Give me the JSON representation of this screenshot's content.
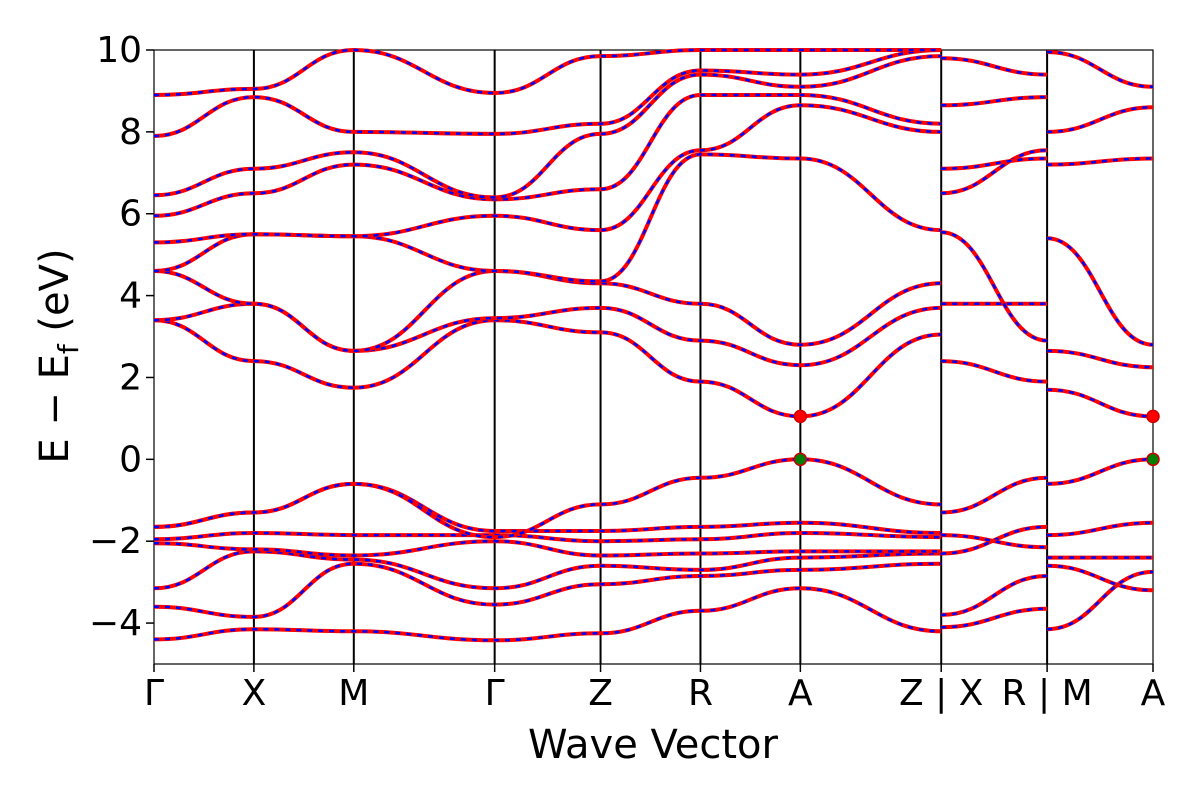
{
  "chart_data": {
    "type": "line",
    "xlabel": "Wave Vector",
    "ylabel_main": "E − E",
    "ylabel_sub": "f",
    "ylabel_unit": " (eV)",
    "ylim": [
      -5,
      10
    ],
    "yticks": [
      -4,
      -2,
      0,
      2,
      4,
      6,
      8,
      10
    ],
    "ytick_labels": [
      "−4",
      "−2",
      "0",
      "2",
      "4",
      "6",
      "8",
      "10"
    ],
    "xlim": [
      0,
      10
    ],
    "kpath_ticks": [
      {
        "x": 0.0,
        "label": "Γ"
      },
      {
        "x": 1.0,
        "label": "X"
      },
      {
        "x": 2.0,
        "label": "M"
      },
      {
        "x": 3.41,
        "label": "Γ"
      },
      {
        "x": 4.47,
        "label": "Z"
      },
      {
        "x": 5.47,
        "label": "R"
      },
      {
        "x": 6.47,
        "label": "A"
      },
      {
        "x": 7.88,
        "label": "Z | X"
      },
      {
        "x": 8.94,
        "label": "R | M"
      },
      {
        "x": 10.0,
        "label": "A"
      }
    ],
    "label_text": {
      "gamma": "Γ",
      "x": "X",
      "m": "M",
      "z": "Z",
      "r": "R",
      "a": "A",
      "sep": "|"
    },
    "line_colors": {
      "primary": "#ff0000",
      "overlay": "#0000ff",
      "grid": "#000000"
    },
    "band_edges": {
      "cbm": {
        "x": 6.47,
        "y": 1.05,
        "color": "#ff0000"
      },
      "vbm": {
        "x": 6.47,
        "y": 0.0,
        "color": "#008000"
      },
      "cbm2": {
        "x": 10.0,
        "y": 1.05,
        "color": "#ff0000"
      },
      "vbm2": {
        "x": 10.0,
        "y": 0.0,
        "color": "#008000"
      }
    },
    "series": [
      {
        "x": [
          0,
          1,
          2,
          3.41,
          4.47,
          5.47,
          6.47,
          7.88
        ],
        "y": [
          -4.4,
          -4.15,
          -4.2,
          -4.42,
          -4.25,
          -3.7,
          -3.15,
          -4.2
        ]
      },
      {
        "x": [
          0,
          1,
          2,
          3.41,
          4.47,
          5.47,
          6.47,
          7.88
        ],
        "y": [
          -3.6,
          -3.85,
          -2.55,
          -3.55,
          -3.05,
          -2.85,
          -2.7,
          -2.55
        ]
      },
      {
        "x": [
          0,
          1,
          2,
          3.41,
          4.47,
          5.47,
          6.47,
          7.88
        ],
        "y": [
          -3.15,
          -2.25,
          -2.45,
          -3.15,
          -2.6,
          -2.7,
          -2.4,
          -2.3
        ]
      },
      {
        "x": [
          0,
          1,
          2,
          3.41,
          4.47,
          5.47,
          6.47,
          7.88
        ],
        "y": [
          -2.05,
          -2.2,
          -2.35,
          -2.0,
          -2.35,
          -2.3,
          -2.25,
          -2.25
        ]
      },
      {
        "x": [
          0,
          1,
          2,
          3.41,
          4.47,
          5.47,
          6.47,
          7.88
        ],
        "y": [
          -1.95,
          -1.8,
          -1.85,
          -1.85,
          -2.0,
          -1.95,
          -1.8,
          -1.9
        ]
      },
      {
        "x": [
          0,
          1,
          2,
          3.41,
          4.47,
          5.47,
          6.47,
          7.88
        ],
        "y": [
          -1.65,
          -1.3,
          -0.6,
          -1.75,
          -1.75,
          -1.65,
          -1.55,
          -1.8
        ]
      },
      {
        "x": [
          0,
          1,
          2,
          3.41,
          4.47,
          5.47,
          6.47,
          7.88
        ],
        "y": [
          -1.65,
          -1.3,
          -0.6,
          -1.9,
          -1.1,
          -0.45,
          0.0,
          -1.1
        ]
      },
      {
        "x": [
          0,
          1,
          2,
          3.41,
          4.47,
          5.47,
          6.47,
          7.88
        ],
        "y": [
          3.4,
          2.4,
          1.75,
          3.4,
          3.1,
          1.9,
          1.05,
          3.05
        ]
      },
      {
        "x": [
          0,
          1,
          2,
          3.41,
          4.47,
          5.47,
          6.47,
          7.88
        ],
        "y": [
          3.4,
          3.8,
          2.65,
          3.45,
          3.7,
          2.9,
          2.3,
          3.7
        ]
      },
      {
        "x": [
          0,
          1,
          2,
          3.41,
          4.47,
          5.47,
          6.47,
          7.88
        ],
        "y": [
          4.6,
          3.8,
          2.65,
          4.6,
          4.3,
          3.8,
          2.8,
          4.3
        ]
      },
      {
        "x": [
          0,
          1,
          2,
          3.41,
          4.47,
          5.47,
          6.47,
          7.88
        ],
        "y": [
          4.6,
          5.5,
          5.45,
          4.6,
          4.35,
          7.45,
          7.35,
          5.6
        ]
      },
      {
        "x": [
          0,
          1,
          2,
          3.41,
          4.47,
          5.47,
          6.47,
          7.88
        ],
        "y": [
          5.3,
          5.5,
          5.45,
          5.95,
          5.6,
          7.55,
          8.65,
          8.0
        ]
      },
      {
        "x": [
          0,
          1,
          2,
          3.41,
          4.47,
          5.47,
          6.47,
          7.88
        ],
        "y": [
          5.95,
          6.5,
          7.2,
          6.35,
          6.6,
          8.9,
          8.9,
          8.2
        ]
      },
      {
        "x": [
          0,
          1,
          2,
          3.41,
          4.47,
          5.47,
          6.47,
          7.88
        ],
        "y": [
          6.45,
          7.1,
          7.5,
          6.4,
          7.95,
          9.4,
          9.1,
          9.85
        ]
      },
      {
        "x": [
          0,
          1,
          2,
          3.41,
          4.47,
          5.47,
          6.47,
          7.88
        ],
        "y": [
          7.9,
          8.85,
          8.0,
          7.95,
          8.2,
          9.5,
          9.4,
          10.0
        ]
      },
      {
        "x": [
          0,
          1,
          2,
          3.41,
          4.47,
          5.47,
          6.47,
          7.88
        ],
        "y": [
          8.9,
          9.05,
          10.0,
          8.95,
          9.85,
          10.0,
          10.0,
          10.0
        ]
      },
      {
        "x": [
          7.88,
          8.94
        ],
        "y": [
          -4.1,
          -3.65
        ]
      },
      {
        "x": [
          7.88,
          8.94
        ],
        "y": [
          -3.8,
          -2.85
        ]
      },
      {
        "x": [
          7.88,
          8.94
        ],
        "y": [
          -2.3,
          -1.65
        ]
      },
      {
        "x": [
          7.88,
          8.94
        ],
        "y": [
          -1.85,
          -2.15
        ]
      },
      {
        "x": [
          7.88,
          8.94
        ],
        "y": [
          -1.3,
          -0.45
        ]
      },
      {
        "x": [
          7.88,
          8.94
        ],
        "y": [
          2.4,
          1.9
        ]
      },
      {
        "x": [
          7.88,
          8.94
        ],
        "y": [
          3.8,
          3.8
        ]
      },
      {
        "x": [
          7.88,
          8.94
        ],
        "y": [
          5.55,
          2.9
        ]
      },
      {
        "x": [
          7.88,
          8.94
        ],
        "y": [
          6.5,
          7.55
        ]
      },
      {
        "x": [
          7.88,
          8.94
        ],
        "y": [
          7.1,
          7.35
        ]
      },
      {
        "x": [
          7.88,
          8.94
        ],
        "y": [
          8.65,
          8.85
        ]
      },
      {
        "x": [
          7.88,
          8.94
        ],
        "y": [
          9.8,
          9.4
        ]
      },
      {
        "x": [
          8.94,
          10.0
        ],
        "y": [
          -4.15,
          -2.75
        ]
      },
      {
        "x": [
          8.94,
          10.0
        ],
        "y": [
          -2.6,
          -3.2
        ]
      },
      {
        "x": [
          8.94,
          10.0
        ],
        "y": [
          -2.4,
          -2.4
        ]
      },
      {
        "x": [
          8.94,
          10.0
        ],
        "y": [
          -1.85,
          -1.55
        ]
      },
      {
        "x": [
          8.94,
          10.0
        ],
        "y": [
          -0.6,
          0.0
        ]
      },
      {
        "x": [
          8.94,
          10.0
        ],
        "y": [
          1.7,
          1.05
        ]
      },
      {
        "x": [
          8.94,
          10.0
        ],
        "y": [
          2.65,
          2.25
        ]
      },
      {
        "x": [
          8.94,
          10.0
        ],
        "y": [
          5.4,
          2.8
        ]
      },
      {
        "x": [
          8.94,
          10.0
        ],
        "y": [
          7.2,
          7.35
        ]
      },
      {
        "x": [
          8.94,
          10.0
        ],
        "y": [
          8.0,
          8.6
        ]
      },
      {
        "x": [
          8.94,
          10.0
        ],
        "y": [
          9.95,
          9.1
        ]
      }
    ]
  }
}
